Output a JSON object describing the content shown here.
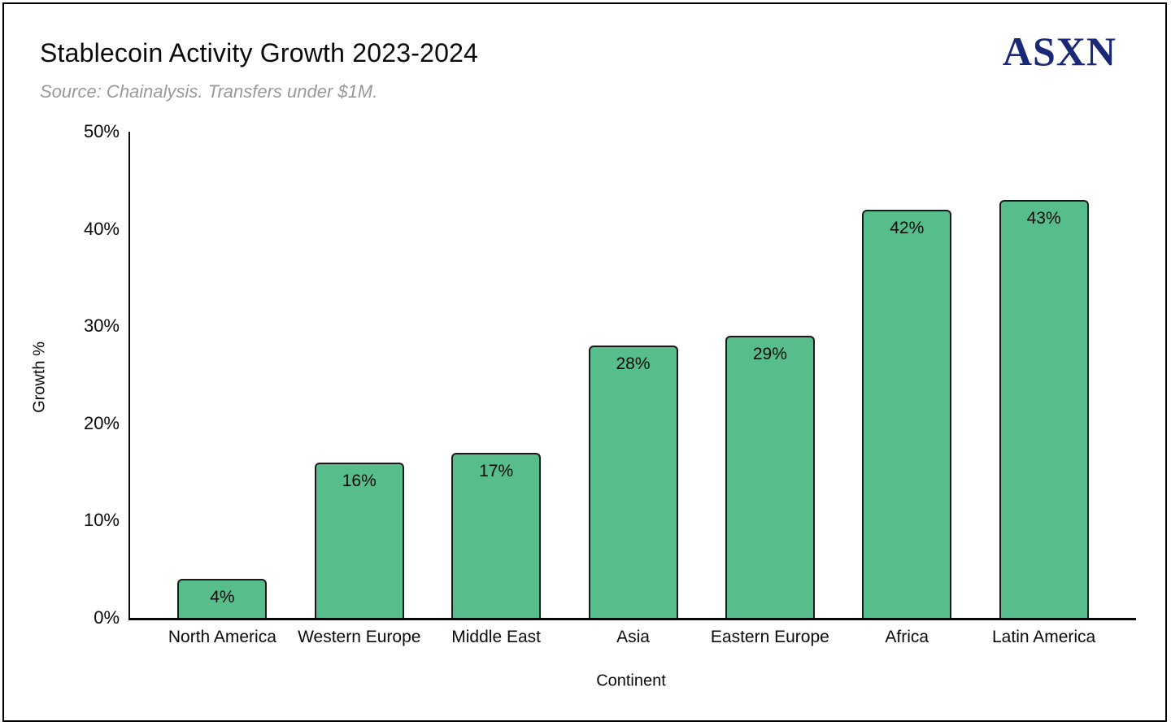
{
  "header": {
    "title": "Stablecoin Activity Growth 2023-2024",
    "subtitle": "Source: Chainalysis. Transfers under $1M.",
    "logo_text": "ASXN",
    "logo_color": "#1a2878"
  },
  "chart_data": {
    "type": "bar",
    "title": "Stablecoin Activity Growth 2023-2024",
    "subtitle": "Source: Chainalysis. Transfers under $1M.",
    "categories": [
      "North America",
      "Western Europe",
      "Middle East",
      "Asia",
      "Eastern Europe",
      "Africa",
      "Latin America"
    ],
    "values": [
      4,
      16,
      17,
      28,
      29,
      42,
      43
    ],
    "value_labels": [
      "4%",
      "16%",
      "17%",
      "28%",
      "29%",
      "42%",
      "43%"
    ],
    "xlabel": "Continent",
    "ylabel": "Growth %",
    "ylim": [
      0,
      50
    ],
    "ytick_values": [
      0,
      10,
      20,
      30,
      40,
      50
    ],
    "ytick_labels": [
      "0%",
      "10%",
      "20%",
      "30%",
      "40%",
      "50%"
    ],
    "grid": false,
    "legend": false,
    "bar_color": "#57bd8b",
    "bar_border_color": "#1a1a1a",
    "axis_color": "#0a0a0a"
  }
}
